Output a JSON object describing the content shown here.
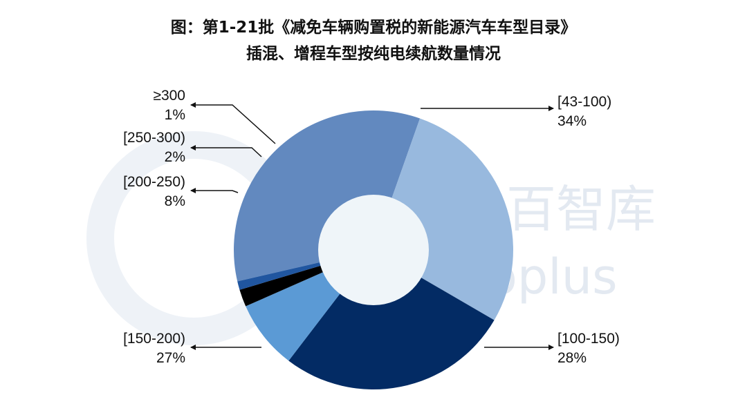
{
  "title": {
    "line1": "图：第1-21批《减免车辆购置税的新能源汽车车型目录》",
    "line2": "插混、增程车型按纯电续航数量情况"
  },
  "watermark": {
    "text_cn": "百智库",
    "text_en": "oplus"
  },
  "colors": {
    "43-100": "#6289bf",
    "100-150": "#98b9de",
    "150-200": "#032b64",
    "200-250": "#5b9ad5",
    "250-300": "#000000",
    ">=300": "#2056a0",
    "hole": "#eff5f9"
  },
  "chart_data": {
    "type": "pie",
    "variant": "donut",
    "title": "图：第1-21批《减免车辆购置税的新能源汽车车型目录》 插混、增程车型按纯电续航数量情况",
    "slices": [
      {
        "name": "[43-100)",
        "value": 34,
        "label": "34%",
        "color": "#6289bf"
      },
      {
        "name": "[100-150)",
        "value": 28,
        "label": "28%",
        "color": "#98b9de"
      },
      {
        "name": "[150-200)",
        "value": 27,
        "label": "27%",
        "color": "#032b64"
      },
      {
        "name": "[200-250)",
        "value": 8,
        "label": "8%",
        "color": "#5b9ad5"
      },
      {
        "name": "[250-300)",
        "value": 2,
        "label": "2%",
        "color": "#000000"
      },
      {
        "name": "≥300",
        "value": 1,
        "label": "1%",
        "color": "#2056a0"
      }
    ]
  }
}
